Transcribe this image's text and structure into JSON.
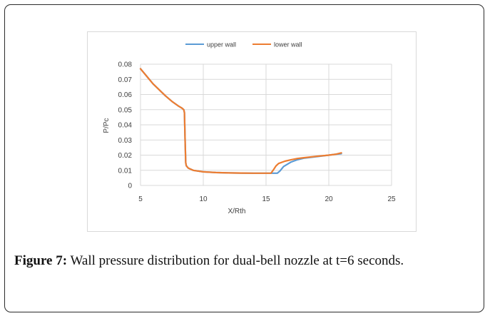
{
  "caption": {
    "label": "Figure 7:",
    "text": " Wall pressure distribution for dual-bell nozzle at t=6 seconds."
  },
  "chart_data": {
    "type": "line",
    "xlabel": "X/Rth",
    "ylabel": "P/Pc",
    "xlim": [
      5,
      25
    ],
    "ylim": [
      0,
      0.08
    ],
    "xticks": [
      5,
      10,
      15,
      20,
      25
    ],
    "yticks": [
      0,
      0.01,
      0.02,
      0.03,
      0.04,
      0.05,
      0.06,
      0.07,
      0.08
    ],
    "ytick_labels": [
      "0",
      "0.01",
      "0.02",
      "0.03",
      "0.04",
      "0.05",
      "0.06",
      "0.07",
      "0.08"
    ],
    "grid": "vertical and horizontal",
    "legend_position": "top-center",
    "series": [
      {
        "name": "upper wall",
        "color": "#5b9bd5",
        "x": [
          5.0,
          5.5,
          6.0,
          6.5,
          7.0,
          7.5,
          8.0,
          8.3,
          8.45,
          8.5,
          8.55,
          8.6,
          8.65,
          8.8,
          9.2,
          10.0,
          11.0,
          12.0,
          13.0,
          14.0,
          15.0,
          15.5,
          15.9,
          16.1,
          16.4,
          17.0,
          17.5,
          18.0,
          19.0,
          20.0,
          20.5,
          21.0
        ],
        "y": [
          0.077,
          0.072,
          0.067,
          0.063,
          0.059,
          0.0555,
          0.0525,
          0.051,
          0.05,
          0.048,
          0.03,
          0.015,
          0.013,
          0.0115,
          0.01,
          0.009,
          0.0085,
          0.0083,
          0.0082,
          0.0081,
          0.0081,
          0.0081,
          0.0081,
          0.0095,
          0.0125,
          0.0155,
          0.017,
          0.018,
          0.019,
          0.02,
          0.0205,
          0.021
        ]
      },
      {
        "name": "lower wall",
        "color": "#ed7d31",
        "x": [
          5.0,
          5.5,
          6.0,
          6.5,
          7.0,
          7.5,
          8.0,
          8.3,
          8.45,
          8.5,
          8.55,
          8.6,
          8.65,
          8.8,
          9.2,
          10.0,
          11.0,
          12.0,
          13.0,
          14.0,
          15.0,
          15.4,
          15.6,
          15.8,
          16.0,
          16.5,
          17.0,
          17.5,
          18.0,
          19.0,
          20.0,
          20.5,
          21.0
        ],
        "y": [
          0.077,
          0.072,
          0.067,
          0.063,
          0.059,
          0.0555,
          0.0525,
          0.051,
          0.05,
          0.048,
          0.03,
          0.015,
          0.013,
          0.0115,
          0.01,
          0.009,
          0.0085,
          0.0083,
          0.0082,
          0.0081,
          0.0081,
          0.0081,
          0.0105,
          0.013,
          0.0145,
          0.016,
          0.017,
          0.0178,
          0.0183,
          0.0192,
          0.02,
          0.0205,
          0.0215
        ]
      }
    ]
  }
}
